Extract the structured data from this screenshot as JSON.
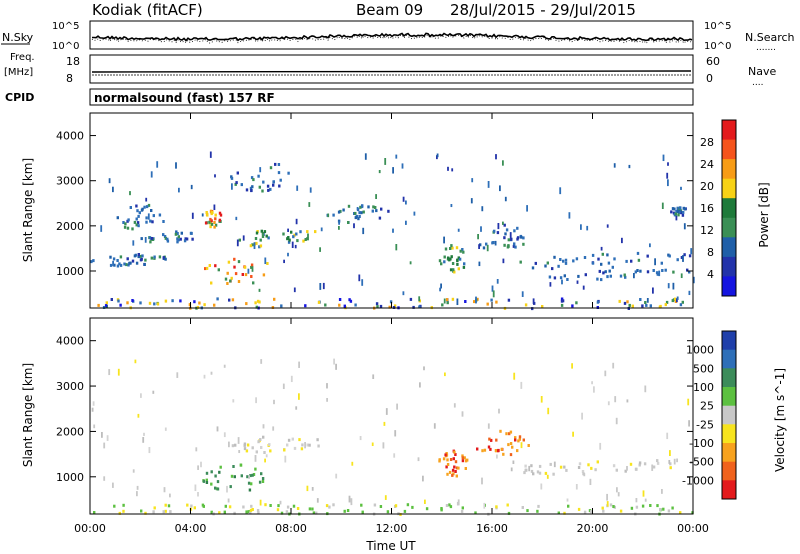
{
  "header": {
    "station": "Kodiak (fitACF)",
    "beam": "Beam 09",
    "dates": "28/Jul/2015 - 29/Jul/2015"
  },
  "strip_labels": {
    "nsky": "N.Sky",
    "nsearch": "N.Search",
    "freq": "Freq.",
    "mhz": "[MHz]",
    "nave": "Nave",
    "cpid": "CPID",
    "cpid_value": "normalsound (fast) 157 RF",
    "noise_top_left": "10^5",
    "noise_bottom_left": "10^0",
    "noise_top_right": "10^5",
    "noise_bottom_right": "10^0",
    "freq_top": "18",
    "freq_bottom": "8",
    "nave_top": "60",
    "nave_bottom": "0",
    "nsearch_line": ".......",
    "nave_line": "...."
  },
  "axes": {
    "xlabel": "Time UT",
    "ylabel": "Slant Range [km]",
    "x_ticks": [
      "00:00",
      "04:00",
      "08:00",
      "12:00",
      "16:00",
      "20:00",
      "00:00"
    ],
    "y_ticks": [
      "1000",
      "2000",
      "3000",
      "4000"
    ]
  },
  "chart_data": [
    {
      "type": "heatmap",
      "title": "",
      "xlabel": "",
      "ylabel": "Slant Range [km]",
      "x_range_hours": [
        0,
        24
      ],
      "ylim": [
        180,
        4500
      ],
      "colorbar": {
        "label": "Power [dB]",
        "ticks": [
          "28",
          "24",
          "20",
          "16",
          "12",
          "8",
          "4"
        ],
        "colors": [
          "#e31a1c",
          "#f5541c",
          "#f79c16",
          "#f7d216",
          "#1e7a3a",
          "#3a8f55",
          "#1f5fa8",
          "#2233aa",
          "#1515e0"
        ]
      },
      "regions": [
        {
          "name": "near-range",
          "t": [
            0,
            24
          ],
          "r": [
            200,
            420
          ],
          "intensity": "mixed"
        },
        {
          "name": "echo-0145-1300",
          "t": [
            0,
            3.2
          ],
          "r": [
            1150,
            1400
          ],
          "intensity": "low"
        },
        {
          "name": "echo-0130-2300",
          "t": [
            1,
            3
          ],
          "r": [
            1950,
            2500
          ],
          "intensity": "low"
        },
        {
          "name": "echo-0200-1800",
          "t": [
            2,
            4.2
          ],
          "r": [
            1650,
            1900
          ],
          "intensity": "low"
        },
        {
          "name": "echo-0500-1000",
          "t": [
            4.2,
            7.3
          ],
          "r": [
            700,
            1300
          ],
          "intensity": "high"
        },
        {
          "name": "echo-0530-1750",
          "t": [
            5.5,
            9.3
          ],
          "r": [
            1550,
            1950
          ],
          "intensity": "medium"
        },
        {
          "name": "echo-0500-2200",
          "t": [
            4.5,
            5.2
          ],
          "r": [
            2000,
            2400
          ],
          "intensity": "high"
        },
        {
          "name": "echo-0630-3100",
          "t": [
            5.5,
            8
          ],
          "r": [
            2800,
            3500
          ],
          "intensity": "low"
        },
        {
          "name": "echo-1000-2300",
          "t": [
            9.2,
            12
          ],
          "r": [
            2100,
            2500
          ],
          "intensity": "low"
        },
        {
          "name": "echo-1400-1200",
          "t": [
            13.8,
            15
          ],
          "r": [
            1000,
            1600
          ],
          "intensity": "medium"
        },
        {
          "name": "echo-1500-1700",
          "t": [
            15.2,
            17.5
          ],
          "r": [
            1500,
            2050
          ],
          "intensity": "low"
        },
        {
          "name": "echo-1700-1300",
          "t": [
            16.5,
            24
          ],
          "r": [
            1100,
            1400
          ],
          "intensity": "low"
        },
        {
          "name": "echo-1900-1000",
          "t": [
            18,
            24
          ],
          "r": [
            850,
            1050
          ],
          "intensity": "low"
        },
        {
          "name": "echo-2330-2350",
          "t": [
            23,
            23.8
          ],
          "r": [
            2250,
            2450
          ],
          "intensity": "low"
        }
      ]
    },
    {
      "type": "heatmap",
      "title": "",
      "xlabel": "Time UT",
      "ylabel": "Slant Range [km]",
      "x_range_hours": [
        0,
        24
      ],
      "ylim": [
        180,
        4500
      ],
      "colorbar": {
        "label": "Velocity [m s^-1]",
        "ticks": [
          "1000",
          "500",
          "100",
          "25",
          "-25",
          "-100",
          "-500",
          "-1000"
        ],
        "colors": [
          "#1f3faa",
          "#2e6fb8",
          "#3c8c5a",
          "#5cc040",
          "#c8c8c8",
          "#f7e41e",
          "#f7a21e",
          "#f0621c",
          "#e31a1c"
        ]
      },
      "regions": [
        {
          "name": "near-range",
          "t": [
            0,
            24
          ],
          "r": [
            200,
            420
          ],
          "velocity": "mixed"
        },
        {
          "name": "echo-0500-1000",
          "t": [
            4.2,
            7.3
          ],
          "r": [
            700,
            1300
          ],
          "velocity": "positive"
        },
        {
          "name": "echo-1400-1200",
          "t": [
            13.8,
            15
          ],
          "r": [
            1000,
            1600
          ],
          "velocity": "negative"
        },
        {
          "name": "echo-1500-1700",
          "t": [
            15.2,
            17.5
          ],
          "r": [
            1500,
            2050
          ],
          "velocity": "negative"
        },
        {
          "name": "echo-0530-1750",
          "t": [
            5.5,
            9.3
          ],
          "r": [
            1550,
            1950
          ],
          "velocity": "near-zero"
        },
        {
          "name": "echo-1700-1300",
          "t": [
            16.5,
            24
          ],
          "r": [
            1100,
            1400
          ],
          "velocity": "near-zero"
        }
      ]
    }
  ]
}
